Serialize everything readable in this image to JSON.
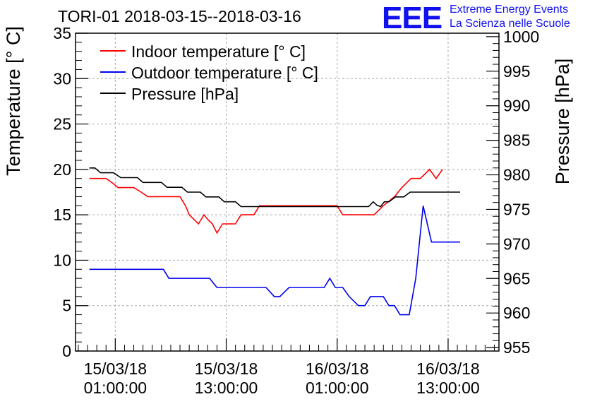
{
  "title": "TORI-01 2018-03-15--2018-03-16",
  "logo": {
    "letters": "EEE",
    "line1": "Extreme Energy Events",
    "line2": "La Scienza nelle Scuole",
    "color": "#1111ee"
  },
  "chart_data": {
    "type": "line",
    "grid": true,
    "legend_position": "top-left",
    "left_axis": {
      "label": "Temperature [° C]",
      "range": [
        0,
        35
      ],
      "ticks": [
        0,
        5,
        10,
        15,
        20,
        25,
        30,
        35
      ]
    },
    "right_axis": {
      "label": "Pressure [hPa]",
      "range": [
        954.5,
        1000.5
      ],
      "ticks": [
        955,
        960,
        965,
        970,
        975,
        980,
        985,
        990,
        995,
        1000
      ]
    },
    "x_axis": {
      "unit": "hours since 15/03/18 00:00",
      "range": [
        -3.3,
        42.5
      ],
      "ticks": [
        {
          "x": 1,
          "date": "15/03/18",
          "time": "01:00:00"
        },
        {
          "x": 13,
          "date": "15/03/18",
          "time": "13:00:00"
        },
        {
          "x": 25,
          "date": "16/03/18",
          "time": "01:00:00"
        },
        {
          "x": 37,
          "date": "16/03/18",
          "time": "13:00:00"
        }
      ]
    },
    "series": [
      {
        "name": "Indoor temperature [° C]",
        "axis": "left",
        "color": "#ff0000",
        "points": [
          [
            -1.8,
            19
          ],
          [
            0,
            19
          ],
          [
            0.7,
            18.5
          ],
          [
            1.3,
            18
          ],
          [
            3,
            18
          ],
          [
            3.8,
            17.5
          ],
          [
            4.5,
            17
          ],
          [
            8,
            17
          ],
          [
            8.6,
            16
          ],
          [
            9,
            15
          ],
          [
            9.5,
            14.5
          ],
          [
            10,
            14
          ],
          [
            10.6,
            15
          ],
          [
            11,
            14.5
          ],
          [
            11.5,
            14
          ],
          [
            12,
            13
          ],
          [
            12.6,
            14
          ],
          [
            14,
            14
          ],
          [
            14.6,
            15
          ],
          [
            16,
            15
          ],
          [
            16.6,
            16
          ],
          [
            18,
            16
          ],
          [
            25,
            16
          ],
          [
            25.6,
            15
          ],
          [
            29,
            15
          ],
          [
            30,
            16
          ],
          [
            31.2,
            17
          ],
          [
            32,
            18
          ],
          [
            33,
            19
          ],
          [
            34,
            19
          ],
          [
            35,
            20
          ],
          [
            35.7,
            19
          ],
          [
            36.4,
            20
          ]
        ]
      },
      {
        "name": "Outdoor temperature [° C]",
        "axis": "left",
        "color": "#0000ee",
        "points": [
          [
            -1.8,
            9
          ],
          [
            6.2,
            9
          ],
          [
            6.8,
            8
          ],
          [
            11.2,
            8
          ],
          [
            12,
            7
          ],
          [
            17.3,
            7
          ],
          [
            18.2,
            6
          ],
          [
            18.8,
            6
          ],
          [
            19.8,
            7
          ],
          [
            23.6,
            7
          ],
          [
            24.2,
            8
          ],
          [
            24.8,
            7
          ],
          [
            25.6,
            7
          ],
          [
            26.3,
            6
          ],
          [
            27.3,
            5
          ],
          [
            28,
            5
          ],
          [
            28.6,
            6
          ],
          [
            30,
            6
          ],
          [
            30.6,
            5
          ],
          [
            31.2,
            5
          ],
          [
            31.8,
            4
          ],
          [
            32.8,
            4
          ],
          [
            33.5,
            8
          ],
          [
            34.3,
            16
          ],
          [
            35.2,
            12
          ],
          [
            38.3,
            12
          ]
        ]
      },
      {
        "name": "Pressure [hPa]",
        "axis": "right",
        "color": "#000000",
        "points": [
          [
            -1.8,
            981
          ],
          [
            -1.2,
            981
          ],
          [
            -0.6,
            980.3
          ],
          [
            0.8,
            980.3
          ],
          [
            1.6,
            979.6
          ],
          [
            3.4,
            979.6
          ],
          [
            4,
            978.9
          ],
          [
            6,
            978.9
          ],
          [
            6.6,
            978.2
          ],
          [
            8.2,
            978.2
          ],
          [
            8.8,
            977.5
          ],
          [
            10.2,
            977.5
          ],
          [
            10.8,
            976.8
          ],
          [
            12.2,
            976.8
          ],
          [
            12.8,
            976.1
          ],
          [
            14,
            976.1
          ],
          [
            14.6,
            975.4
          ],
          [
            28.4,
            975.4
          ],
          [
            28.9,
            976.1
          ],
          [
            29.3,
            975.6
          ],
          [
            29.7,
            975.4
          ],
          [
            30.1,
            976.1
          ],
          [
            30.6,
            976.1
          ],
          [
            31.3,
            976.8
          ],
          [
            32.2,
            976.8
          ],
          [
            32.9,
            977.5
          ],
          [
            38.3,
            977.5
          ]
        ]
      }
    ]
  }
}
